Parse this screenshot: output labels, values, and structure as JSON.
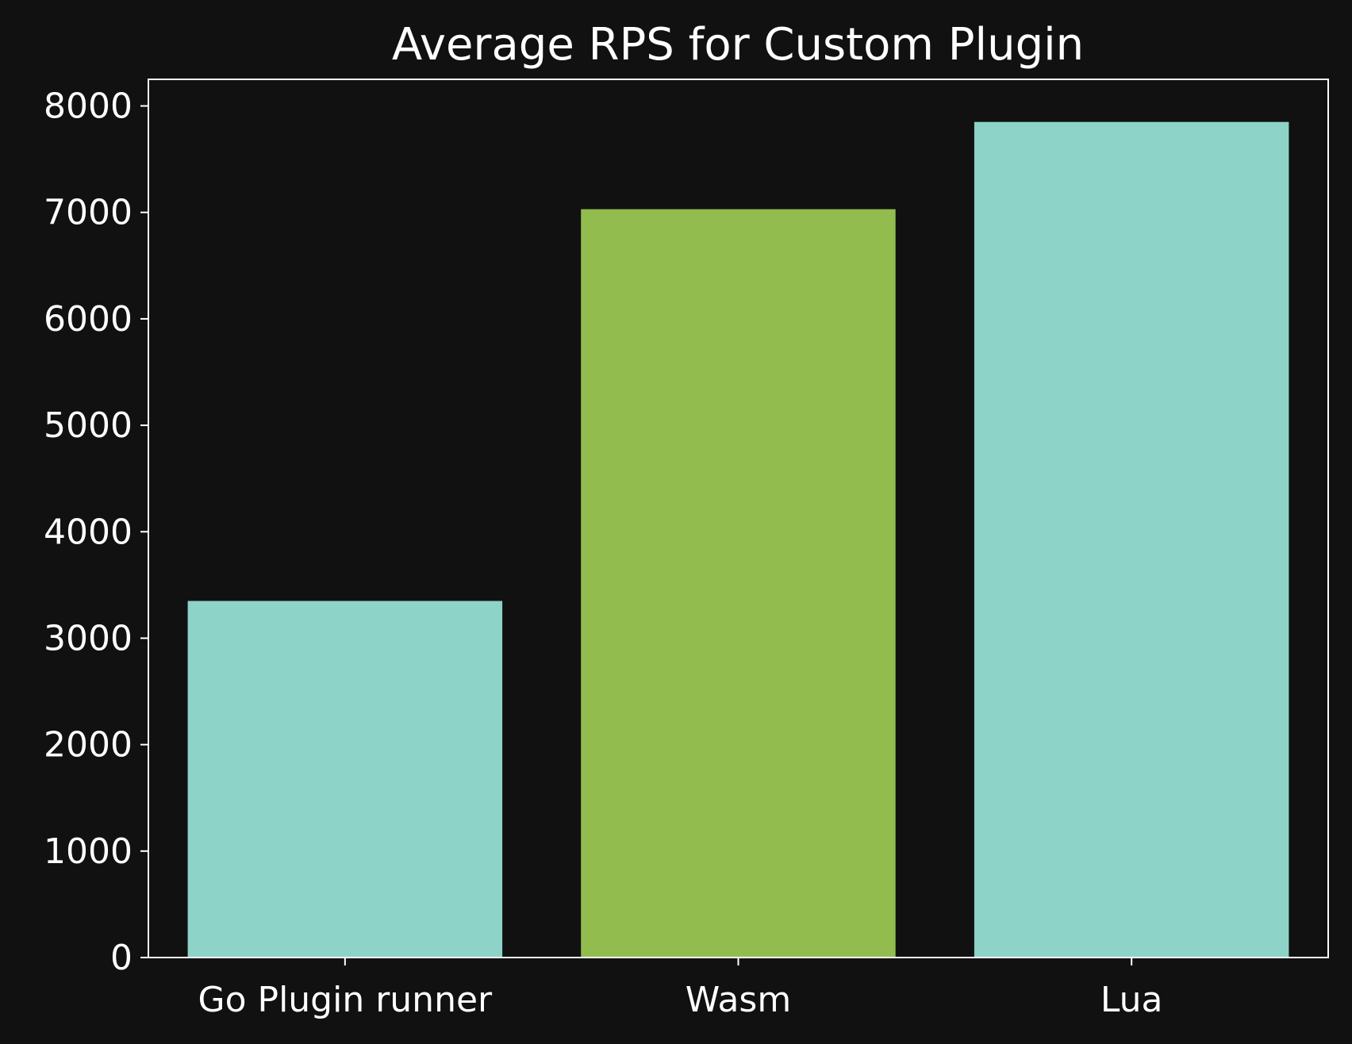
{
  "chart_data": {
    "type": "bar",
    "title": "Average RPS for Custom Plugin",
    "xlabel": "",
    "ylabel": "",
    "categories": [
      "Go Plugin runner",
      "Wasm",
      "Lua"
    ],
    "values": [
      3350,
      7030,
      7850
    ],
    "bar_colors": [
      "#8dd3c7",
      "#93bc4e",
      "#8dd3c7"
    ],
    "ylim": [
      0,
      8250
    ],
    "yticks": [
      0,
      1000,
      2000,
      3000,
      4000,
      5000,
      6000,
      7000,
      8000
    ],
    "grid": false,
    "legend": "none"
  },
  "colors": {
    "background": "#111111",
    "axis": "#ffffff",
    "text": "#ffffff"
  }
}
